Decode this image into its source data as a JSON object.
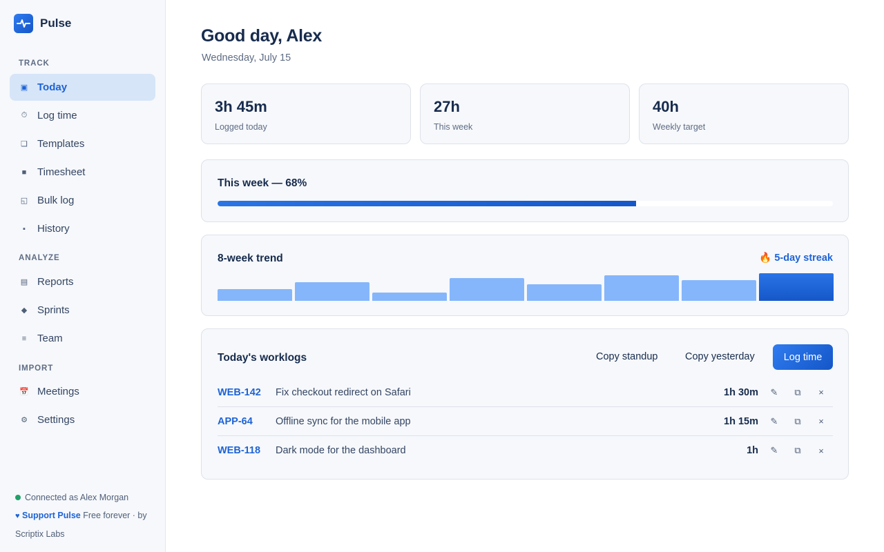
{
  "app": {
    "name": "Pulse"
  },
  "sidebar": {
    "sections": [
      {
        "label": "TRACK"
      },
      {
        "label": "ANALYZE"
      },
      {
        "label": "IMPORT"
      }
    ],
    "items": [
      {
        "label": "Today",
        "icon": "▣",
        "icon_name": "today-icon",
        "active": true
      },
      {
        "label": "Log time",
        "icon": "⏱",
        "icon_name": "stopwatch-icon"
      },
      {
        "label": "Templates",
        "icon": "❏",
        "icon_name": "templates-icon"
      },
      {
        "label": "Timesheet",
        "icon": "■",
        "icon_name": "timesheet-icon"
      },
      {
        "label": "Bulk log",
        "icon": "◱",
        "icon_name": "bulk-log-icon"
      },
      {
        "label": "History",
        "icon": "▪",
        "icon_name": "history-icon"
      },
      {
        "label": "Reports",
        "icon": "▤",
        "icon_name": "reports-icon"
      },
      {
        "label": "Sprints",
        "icon": "◆",
        "icon_name": "sprints-icon"
      },
      {
        "label": "Team",
        "icon": "≡",
        "icon_name": "team-icon"
      },
      {
        "label": "Meetings",
        "icon": "📅",
        "icon_name": "calendar-icon"
      },
      {
        "label": "Settings",
        "icon": "⚙",
        "icon_name": "gear-icon"
      }
    ],
    "footer": {
      "connected": "Connected as Alex Morgan",
      "support_link": "Support Pulse",
      "support_suffix": "Free forever · by Scriptix Labs"
    }
  },
  "main": {
    "greeting": "Good day, Alex",
    "date": "Wednesday, July 15",
    "stats": [
      {
        "value": "3h 45m",
        "label": "Logged today"
      },
      {
        "value": "27h",
        "label": "This week"
      },
      {
        "value": "40h",
        "label": "Weekly target"
      }
    ],
    "progress": {
      "title": "This week — 68%",
      "value": 0.68
    },
    "trend": {
      "title": "8-week trend",
      "streak": "🔥 5-day streak",
      "values": [
        17,
        26,
        12,
        32,
        23,
        36,
        29,
        39
      ]
    },
    "worklogs": {
      "title": "Today's worklogs",
      "copy_standup": "Copy standup",
      "copy_yesterday": "Copy yesterday",
      "log_time": "Log time",
      "rows": [
        {
          "key": "WEB-142",
          "summary": "Fix checkout redirect on Safari",
          "duration": "1h 30m"
        },
        {
          "key": "APP-64",
          "summary": "Offline sync for the mobile app",
          "duration": "1h 15m"
        },
        {
          "key": "WEB-118",
          "summary": "Dark mode for the dashboard",
          "duration": "1h"
        }
      ],
      "icons": {
        "edit": "✎",
        "duplicate": "⧉",
        "delete": "×"
      }
    }
  },
  "colors": {
    "accent": "#1e63d6",
    "active_bg": "#d6e5f8",
    "bar": "#85b6fb",
    "online": "#22a06b"
  }
}
